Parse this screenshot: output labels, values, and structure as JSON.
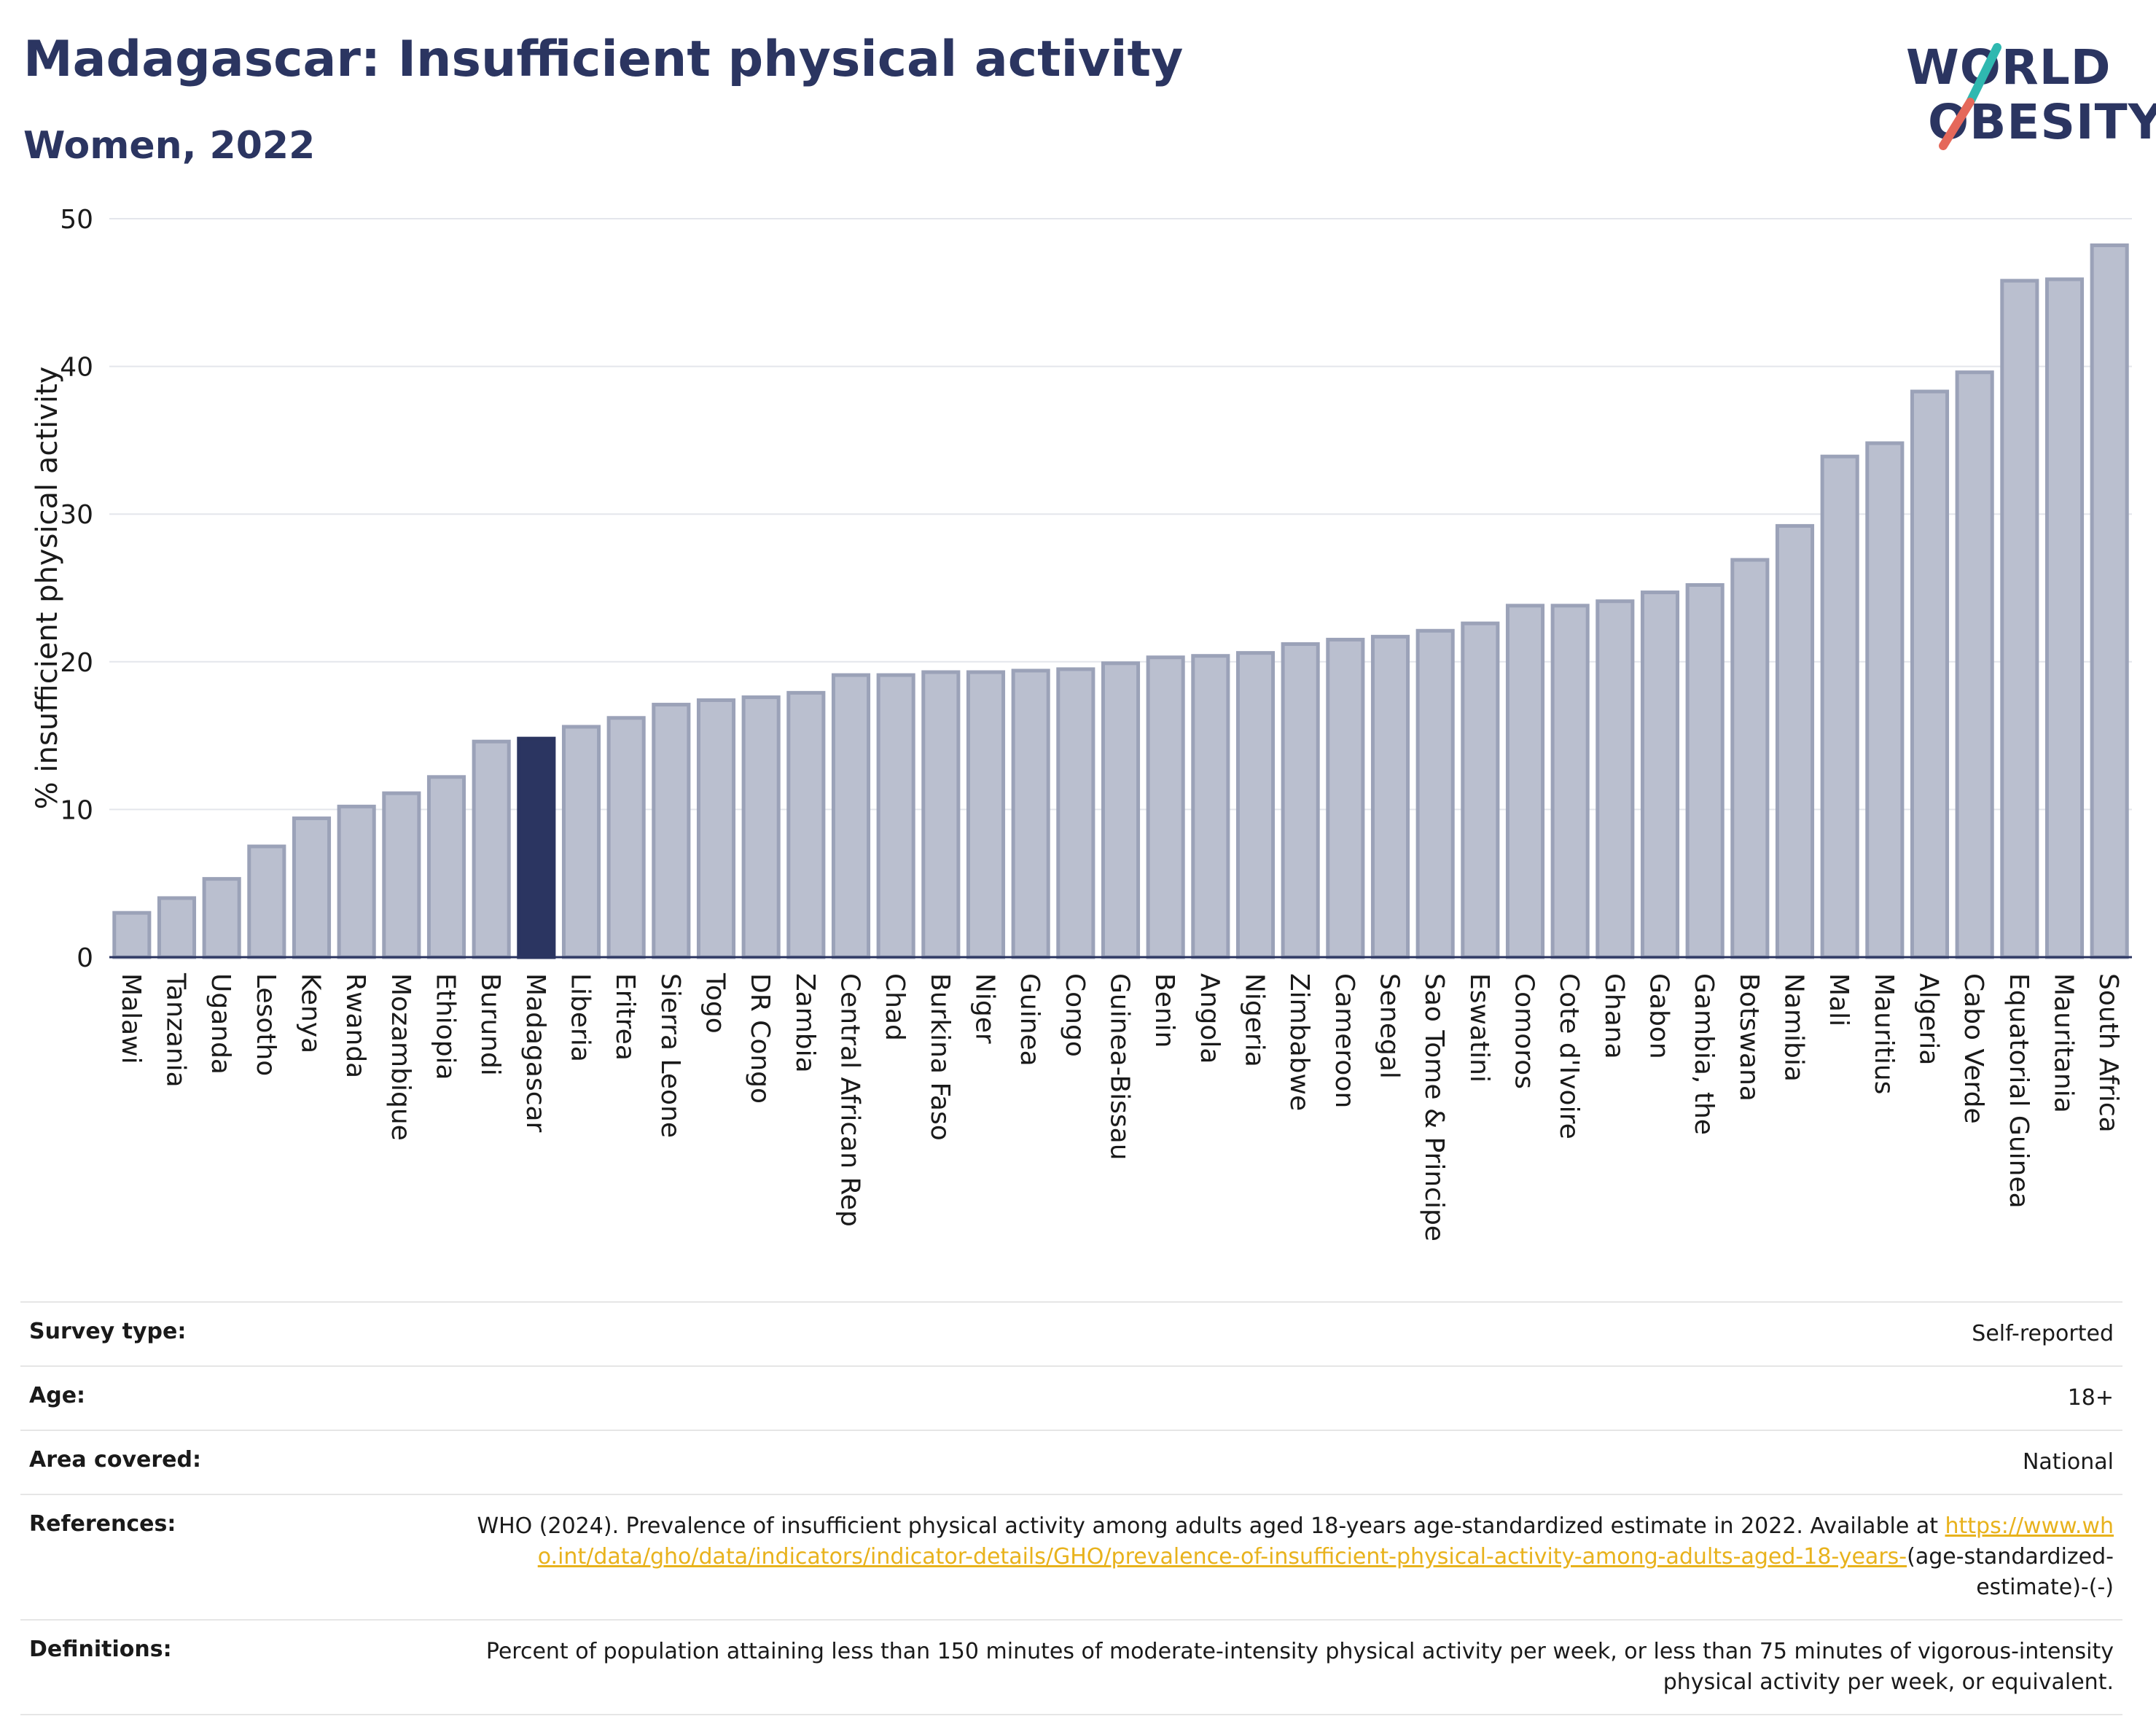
{
  "header": {
    "title": "Madagascar: Insufficient physical activity",
    "subtitle": "Women, 2022"
  },
  "logo": {
    "line1": "WORLD",
    "line2": "OBESITY",
    "slash_colors": [
      "#2fb8b0",
      "#e5685a"
    ]
  },
  "chart_data": {
    "type": "bar",
    "ylabel": "% insufficient physical activity",
    "ylim": [
      0,
      50
    ],
    "yticks": [
      0,
      10,
      20,
      30,
      40,
      50
    ],
    "grid": true,
    "highlight": "Madagascar",
    "colors": {
      "bar": "#babfcf",
      "bar_border": "#9ba2b8",
      "highlight": "#2b3561"
    },
    "categories": [
      "Malawi",
      "Tanzania",
      "Uganda",
      "Lesotho",
      "Kenya",
      "Rwanda",
      "Mozambique",
      "Ethiopia",
      "Burundi",
      "Madagascar",
      "Liberia",
      "Eritrea",
      "Sierra Leone",
      "Togo",
      "DR Congo",
      "Zambia",
      "Central African Rep",
      "Chad",
      "Burkina Faso",
      "Niger",
      "Guinea",
      "Congo",
      "Guinea-Bissau",
      "Benin",
      "Angola",
      "Nigeria",
      "Zimbabwe",
      "Cameroon",
      "Senegal",
      "Sao Tome & Principe",
      "Eswatini",
      "Comoros",
      "Cote d'Ivoire",
      "Ghana",
      "Gabon",
      "Gambia, the",
      "Botswana",
      "Namibia",
      "Mali",
      "Mauritius",
      "Algeria",
      "Cabo Verde",
      "Equatorial Guinea",
      "Mauritania",
      "South Africa"
    ],
    "values": [
      3.0,
      4.0,
      5.3,
      7.5,
      9.4,
      10.2,
      11.1,
      12.2,
      14.6,
      14.8,
      15.6,
      16.2,
      17.1,
      17.4,
      17.6,
      17.9,
      19.1,
      19.1,
      19.3,
      19.3,
      19.4,
      19.5,
      19.9,
      20.3,
      20.4,
      20.6,
      21.2,
      21.5,
      21.7,
      22.1,
      22.6,
      23.8,
      23.8,
      24.1,
      24.7,
      25.2,
      26.9,
      29.2,
      33.9,
      34.8,
      38.3,
      39.6,
      45.8,
      45.9,
      48.2
    ]
  },
  "info": {
    "survey_type_label": "Survey type:",
    "survey_type_value": "Self-reported",
    "age_label": "Age:",
    "age_value": "18+",
    "area_label": "Area covered:",
    "area_value": "National",
    "references_label": "References:",
    "references_text": "WHO (2024). Prevalence of insufficient physical activity among adults aged 18-years age-standardized estimate in 2022. Available at",
    "references_link": "https://www.who.int/data/gho/data/indicators/indicator-details/GHO/prevalence-of-insufficient-physical-activity-among-adults-aged-18-years-",
    "references_suffix": "(age-standardized-estimate)-(-)",
    "definitions_label": "Definitions:",
    "definitions_value": "Percent of population attaining less than 150 minutes of moderate-intensity physical activity per week, or less than 75 minutes of vigorous-intensity physical activity per week, or equivalent."
  }
}
